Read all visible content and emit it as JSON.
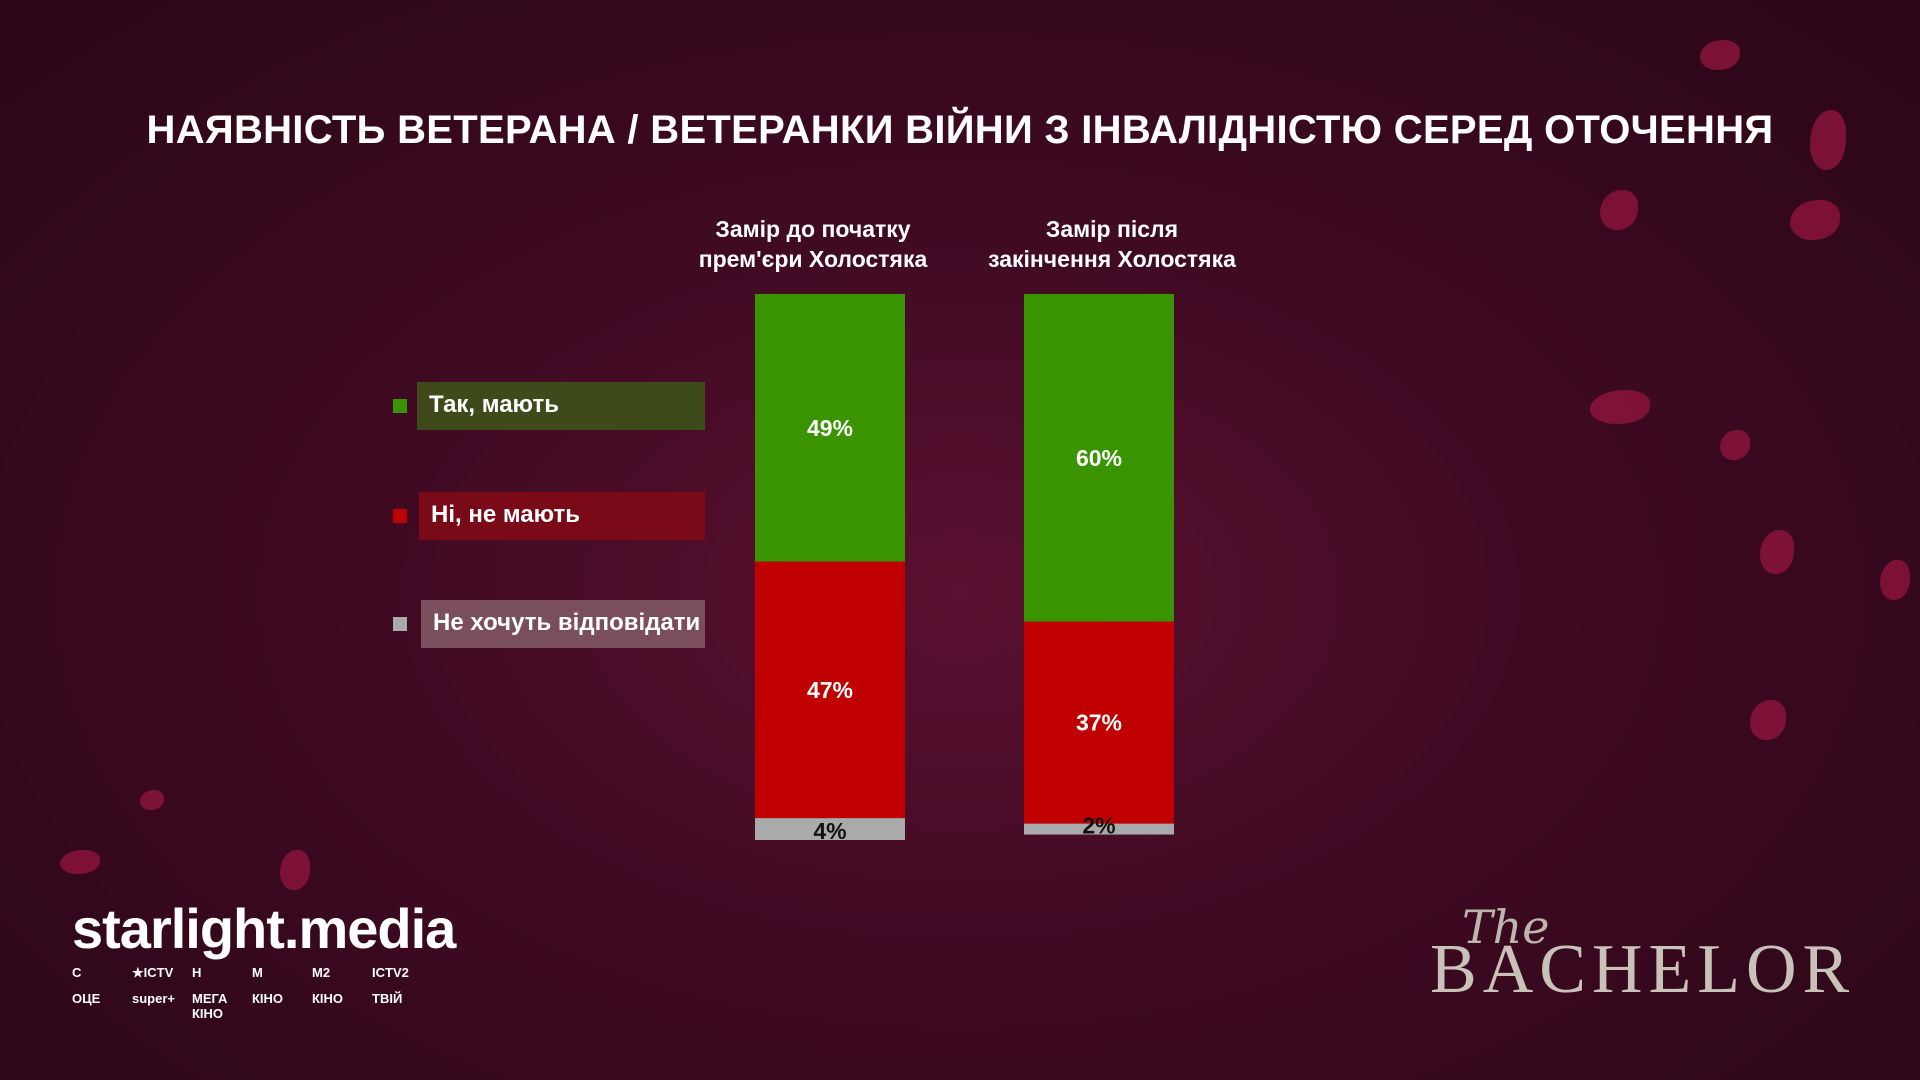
{
  "title": "НАЯВНІСТЬ ВЕТЕРАНА / ВЕТЕРАНКИ ВІЙНИ З ІНВАЛІДНІСТЮ СЕРЕД ОТОЧЕННЯ",
  "legend": [
    {
      "label": "Так, мають",
      "color": "#3a9400",
      "bg": "#3e4a1a"
    },
    {
      "label": "Ні, не мають",
      "color": "#c00000",
      "bg": "#7a0a18"
    },
    {
      "label": "Не хочуть відповідати",
      "color": "#aaaaaa",
      "bg": "#7a4e5c"
    }
  ],
  "chart_data": {
    "type": "bar",
    "stacked": true,
    "categories": [
      "Замір до початку прем'єри Холостяка",
      "Замір після закінчення Холостяка"
    ],
    "category_lines": [
      [
        "Замір до початку",
        "прем'єри Холостяка"
      ],
      [
        "Замір після",
        "закінчення Холостяка"
      ]
    ],
    "series": [
      {
        "name": "Так, мають",
        "values": [
          49,
          60
        ],
        "labels": [
          "49%",
          "60%"
        ],
        "color": "#3a9400"
      },
      {
        "name": "Ні, не мають",
        "values": [
          47,
          37
        ],
        "labels": [
          "47%",
          "37%"
        ],
        "color": "#c00000"
      },
      {
        "name": "Не хочуть відповідати",
        "values": [
          4,
          2
        ],
        "labels": [
          "4%",
          "2%"
        ],
        "color": "#aaaaaa"
      }
    ],
    "ylim": [
      0,
      100
    ],
    "grid": false,
    "legend_position": "left"
  },
  "brand": {
    "name": "starlight.media",
    "channels": [
      "С",
      "★ICTV",
      "Н",
      "М",
      "М2",
      "ICTV2",
      "ОЦЕ",
      "super+",
      "МЕГА КІНО",
      "КІНО",
      "КІНО",
      "ТВІЙ"
    ]
  },
  "show_logo": {
    "the": "The",
    "name": "BACHELOR"
  }
}
